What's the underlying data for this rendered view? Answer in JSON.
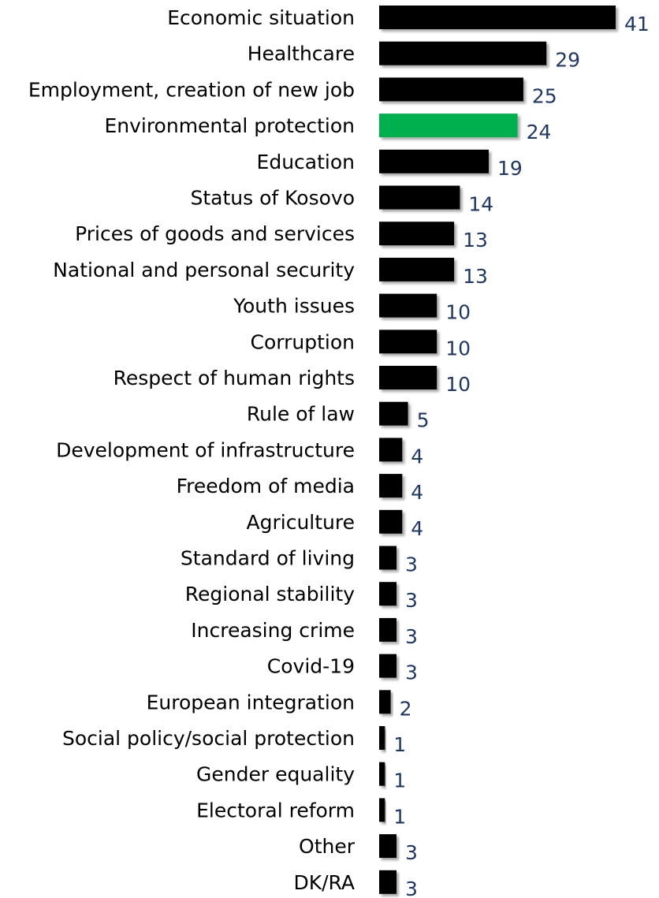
{
  "chart_data": {
    "type": "bar",
    "orientation": "horizontal",
    "categories": [
      "Economic situation",
      "Healthcare",
      "Employment, creation of new job",
      "Environmental protection",
      "Education",
      "Status of Kosovo",
      "Prices of goods and services",
      "National and personal security",
      "Youth issues",
      "Corruption",
      "Respect of human rights",
      "Rule of law",
      "Development of infrastructure",
      "Freedom of media",
      "Agriculture",
      "Standard of living",
      "Regional stability",
      "Increasing crime",
      "Covid-19",
      "European integration",
      "Social policy/social protection",
      "Gender equality",
      "Electoral reform",
      "Other",
      "DK/RA"
    ],
    "values": [
      41,
      29,
      25,
      24,
      19,
      14,
      13,
      13,
      10,
      10,
      10,
      5,
      4,
      4,
      4,
      3,
      3,
      3,
      3,
      2,
      1,
      1,
      1,
      3,
      3
    ],
    "highlight_category": "Environmental protection",
    "xlim": [
      0,
      41
    ],
    "grid": false,
    "data_labels": true
  },
  "colors": {
    "bar": "#000000",
    "highlight_bar": "#00B050",
    "shadow": "#8c8c8c",
    "label_text": "#000000",
    "value_text": "#1F3864"
  }
}
